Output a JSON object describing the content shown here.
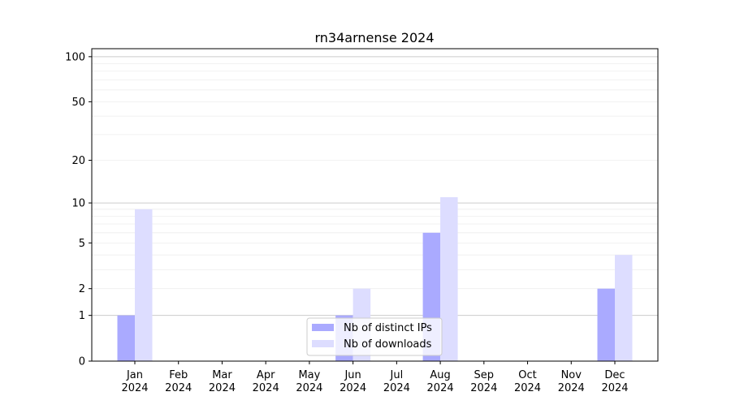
{
  "chart_data": {
    "type": "bar",
    "title": "rn34arnense 2024",
    "xlabel": "",
    "ylabel": "",
    "yscale": "log(1+y)",
    "ylim": [
      0,
      113
    ],
    "yticks": [
      0,
      1,
      2,
      5,
      10,
      20,
      50,
      100
    ],
    "grid": true,
    "legend_position": "bottom-center",
    "categories": [
      "Jan\n2024",
      "Feb\n2024",
      "Mar\n2024",
      "Apr\n2024",
      "May\n2024",
      "Jun\n2024",
      "Jul\n2024",
      "Aug\n2024",
      "Sep\n2024",
      "Oct\n2024",
      "Nov\n2024",
      "Dec\n2024"
    ],
    "series": [
      {
        "name": "Nb of distinct IPs",
        "color": "#aaaaff",
        "values": [
          1,
          0,
          0,
          0,
          0,
          1,
          0,
          6,
          0,
          0,
          0,
          2
        ]
      },
      {
        "name": "Nb of downloads",
        "color": "#ddddff",
        "values": [
          9,
          0,
          0,
          0,
          0,
          2,
          0,
          11,
          0,
          0,
          0,
          4
        ]
      }
    ]
  }
}
